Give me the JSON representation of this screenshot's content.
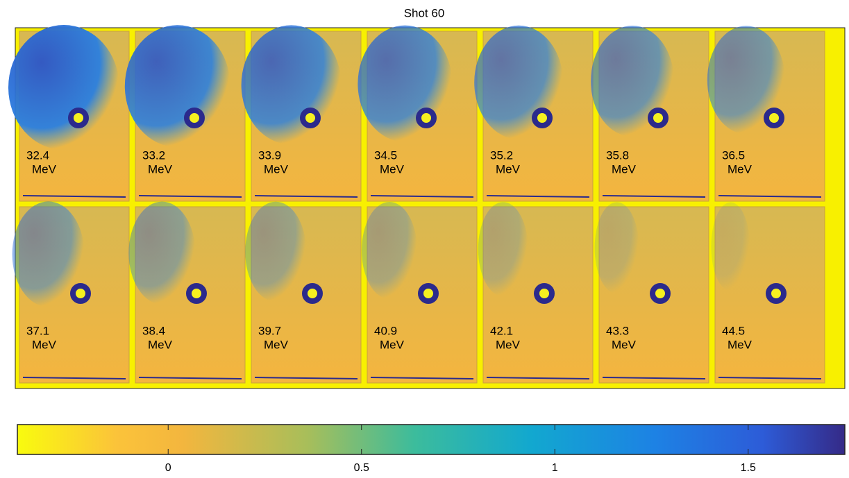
{
  "title": "Shot 60",
  "panels": [
    {
      "energy": "32.4",
      "unit": "MeV"
    },
    {
      "energy": "33.2",
      "unit": "MeV"
    },
    {
      "energy": "33.9",
      "unit": "MeV"
    },
    {
      "energy": "34.5",
      "unit": "MeV"
    },
    {
      "energy": "35.2",
      "unit": "MeV"
    },
    {
      "energy": "35.8",
      "unit": "MeV"
    },
    {
      "energy": "36.5",
      "unit": "MeV"
    },
    {
      "energy": "37.1",
      "unit": "MeV"
    },
    {
      "energy": "38.4",
      "unit": "MeV"
    },
    {
      "energy": "39.7",
      "unit": "MeV"
    },
    {
      "energy": "40.9",
      "unit": "MeV"
    },
    {
      "energy": "42.1",
      "unit": "MeV"
    },
    {
      "energy": "43.3",
      "unit": "MeV"
    },
    {
      "energy": "44.5",
      "unit": "MeV"
    }
  ],
  "colorbar": {
    "lim": [
      -0.39,
      1.75
    ],
    "ticks": [
      0,
      0.5,
      1,
      1.5
    ]
  }
}
